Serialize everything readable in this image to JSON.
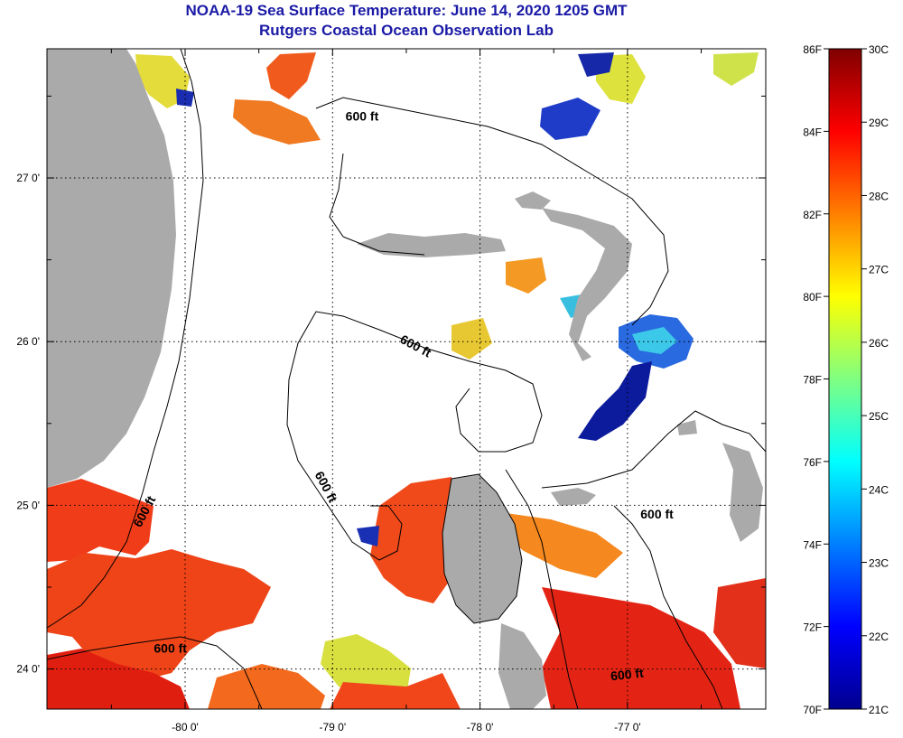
{
  "title": "NOAA-19 Sea Surface Temperature:  June 14, 2020 1205 GMT",
  "subtitle": "Rutgers Coastal Ocean Observation Lab",
  "x_ticks": [
    {
      "lon": -80,
      "label": "-80 0'"
    },
    {
      "lon": -79,
      "label": "-79 0'"
    },
    {
      "lon": -78,
      "label": "-78 0'"
    },
    {
      "lon": -77,
      "label": "-77 0'"
    }
  ],
  "y_ticks": [
    {
      "lat": 27,
      "label": "27 0'"
    },
    {
      "lat": 26,
      "label": "26 0'"
    },
    {
      "lat": 25,
      "label": "25 0'"
    },
    {
      "lat": 24,
      "label": "24 0'"
    }
  ],
  "contour_labels": [
    {
      "text": "600 ft",
      "lon": -78.8,
      "lat": 27.35,
      "angle": 0
    },
    {
      "text": "600 ft",
      "lon": -78.45,
      "lat": 25.95,
      "angle": 28
    },
    {
      "text": "600 ft",
      "lon": -79.07,
      "lat": 25.1,
      "angle": 62
    },
    {
      "text": "600 ft",
      "lon": -80.25,
      "lat": 24.95,
      "angle": -62
    },
    {
      "text": "600 ft",
      "lon": -80.1,
      "lat": 24.1,
      "angle": 0
    },
    {
      "text": "600 ft",
      "lon": -76.8,
      "lat": 24.92,
      "angle": 0
    },
    {
      "text": "600 ft",
      "lon": -77.0,
      "lat": 23.94,
      "angle": -6
    }
  ],
  "colorbar": {
    "fahrenheit_labels": [
      "86F",
      "84F",
      "82F",
      "80F",
      "78F",
      "76F",
      "74F",
      "72F",
      "70F"
    ],
    "celsius_labels": [
      "30C",
      "29C",
      "28C",
      "27C",
      "26C",
      "25C",
      "24C",
      "23C",
      "22C",
      "21C"
    ]
  },
  "colors": {
    "title": "#1a1aa6",
    "land": "#aaaaaa",
    "warm": "#f03c18",
    "hot": "#e01e10",
    "orange": "#f8821c",
    "yellow": "#e8e030",
    "cool_blue": "#1e3cd2",
    "deep_blue": "#0a148c",
    "cyan": "#30c8f0"
  }
}
